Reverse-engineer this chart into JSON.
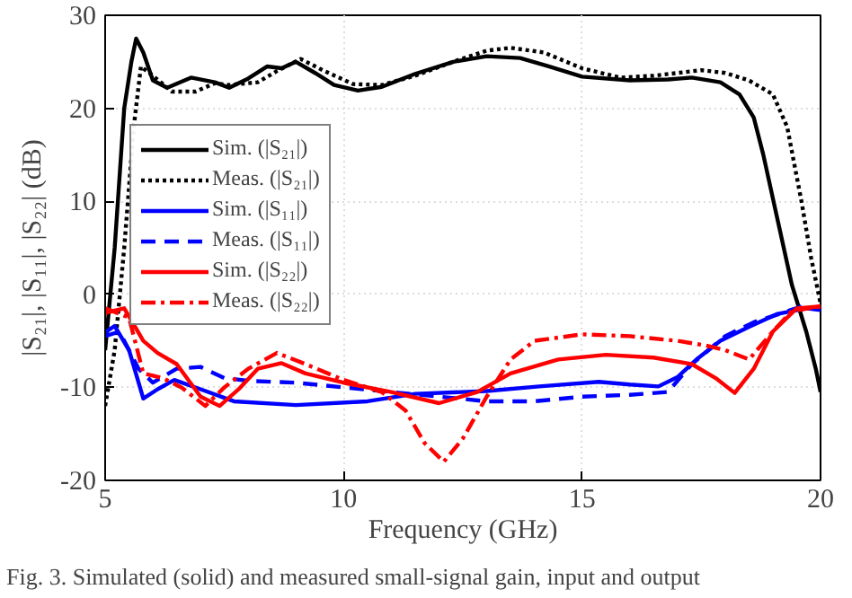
{
  "chart_data": {
    "type": "line",
    "xlabel": "Frequency (GHz)",
    "ylabel": "|S₂₁|, |S₁₁|, |S₂₂| (dB)",
    "annotations": [
      "Fig. 3.  Simulated (solid) and measured small-signal gain, input and output"
    ],
    "xlim": [
      5,
      20
    ],
    "ylim": [
      -20,
      30
    ],
    "xticks": [
      5,
      10,
      15,
      20
    ],
    "yticks": [
      -20,
      -10,
      0,
      10,
      20,
      30
    ],
    "grid": true,
    "legend": "top left",
    "series": [
      {
        "name": "Sim. (|S₂₁|)",
        "color": "#000000",
        "line_style": "solid",
        "x": [
          5.0,
          5.2,
          5.4,
          5.55,
          5.65,
          5.8,
          6.0,
          6.3,
          6.8,
          7.3,
          7.6,
          8.0,
          8.4,
          8.7,
          9.0,
          9.4,
          9.8,
          10.3,
          10.8,
          11.5,
          12.3,
          13.0,
          13.7,
          14.3,
          15.0,
          16.0,
          16.8,
          17.3,
          17.9,
          18.3,
          18.6,
          18.8,
          19.1,
          19.4,
          19.7,
          19.9,
          20.0
        ],
        "values": [
          -6,
          5,
          20,
          25,
          27.5,
          26,
          23,
          22.2,
          23.3,
          22.8,
          22.2,
          23.2,
          24.5,
          24.3,
          25,
          23.8,
          22.5,
          21.9,
          22.3,
          23.7,
          25,
          25.6,
          25.4,
          24.5,
          23.4,
          23,
          23.1,
          23.3,
          22.8,
          21.5,
          19,
          15,
          8,
          1,
          -4,
          -8,
          -10.5
        ]
      },
      {
        "name": "Meas. (|S₂₁|)",
        "color": "#000000",
        "line_style": "dotted",
        "x": [
          5.0,
          5.2,
          5.4,
          5.6,
          5.75,
          6.0,
          6.4,
          6.9,
          7.3,
          7.6,
          8.2,
          8.6,
          9.1,
          9.6,
          10.2,
          10.8,
          11.5,
          12.3,
          13.0,
          13.5,
          14.2,
          15.0,
          15.8,
          16.5,
          17.0,
          17.5,
          18.0,
          18.5,
          19.0,
          19.3,
          19.6,
          19.8,
          20.0
        ],
        "values": [
          -12,
          -6,
          5,
          18,
          24.5,
          23.5,
          21.8,
          21.8,
          22.7,
          22.5,
          22.8,
          24,
          25.3,
          24,
          22.6,
          22.5,
          23.5,
          25,
          26.2,
          26.5,
          26,
          24.3,
          23.3,
          23.5,
          23.8,
          24.1,
          23.8,
          23,
          21.5,
          18,
          10,
          4,
          -1
        ]
      },
      {
        "name": "Sim. (|S₁₁|)",
        "color": "#0000ff",
        "line_style": "solid",
        "x": [
          5.0,
          5.2,
          5.5,
          5.8,
          6.1,
          6.45,
          7.0,
          7.7,
          9.0,
          10.5,
          11.5,
          13.0,
          14.1,
          15.35,
          16.0,
          16.6,
          17.0,
          17.4,
          17.9,
          18.5,
          19.1,
          19.7,
          20.0
        ],
        "values": [
          -4.1,
          -3.4,
          -6,
          -11.2,
          -10.2,
          -9.2,
          -10.2,
          -11.5,
          -11.9,
          -11.5,
          -10.7,
          -10.4,
          -9.9,
          -9.4,
          -9.7,
          -9.9,
          -8.9,
          -7,
          -5,
          -3.5,
          -2.1,
          -1.5,
          -1.7
        ]
      },
      {
        "name": "Meas. (|S₁₁|)",
        "color": "#0000ff",
        "line_style": "dashed",
        "x": [
          5.0,
          5.3,
          5.7,
          6.0,
          6.5,
          7.0,
          7.5,
          8.0,
          9.0,
          10.0,
          11.0,
          12.0,
          13.0,
          14.0,
          15.0,
          16.0,
          16.8,
          17.3,
          18.0,
          18.6,
          19.2,
          19.6,
          20.0
        ],
        "values": [
          -4.5,
          -4,
          -8,
          -9.5,
          -8,
          -7.8,
          -9,
          -9.3,
          -9.5,
          -10,
          -10.5,
          -11,
          -11.5,
          -11.5,
          -11,
          -10.8,
          -10.5,
          -7.5,
          -4.5,
          -3,
          -2,
          -1.3,
          -1.5
        ]
      },
      {
        "name": "Sim. (|S₂₂|)",
        "color": "#ff0000",
        "line_style": "solid",
        "x": [
          5.0,
          5.4,
          5.8,
          6.1,
          6.5,
          7.0,
          7.4,
          7.8,
          8.2,
          8.7,
          9.2,
          10.0,
          11.0,
          12.0,
          12.8,
          13.5,
          14.5,
          15.5,
          16.5,
          17.3,
          17.8,
          18.2,
          18.6,
          19.0,
          19.5,
          20.0
        ],
        "values": [
          -2,
          -1.5,
          -5,
          -6.3,
          -7.5,
          -11,
          -12,
          -10.2,
          -8,
          -7.4,
          -8.5,
          -9.5,
          -10.5,
          -11.7,
          -10.5,
          -8.5,
          -7,
          -6.5,
          -6.8,
          -7.5,
          -9,
          -10.6,
          -8,
          -4,
          -1.5,
          -1.3
        ]
      },
      {
        "name": "Meas. (|S₂₂|)",
        "color": "#ff0000",
        "line_style": "dashdot",
        "x": [
          5.0,
          5.5,
          5.8,
          6.2,
          6.6,
          7.1,
          7.5,
          8.0,
          8.6,
          9.2,
          10.0,
          10.8,
          11.3,
          11.7,
          12.1,
          12.5,
          13.0,
          13.5,
          14.0,
          15.0,
          16.0,
          17.0,
          17.6,
          18.0,
          18.5,
          19.0,
          19.4,
          20.0
        ],
        "values": [
          -1.5,
          -2.5,
          -8.5,
          -9,
          -10,
          -12,
          -10,
          -8,
          -6.3,
          -7.5,
          -9.2,
          -10.5,
          -12.5,
          -16,
          -18,
          -15.5,
          -11,
          -7,
          -5,
          -4.3,
          -4.5,
          -5,
          -5.5,
          -6,
          -7,
          -4,
          -1.8,
          -1.3
        ]
      }
    ]
  }
}
